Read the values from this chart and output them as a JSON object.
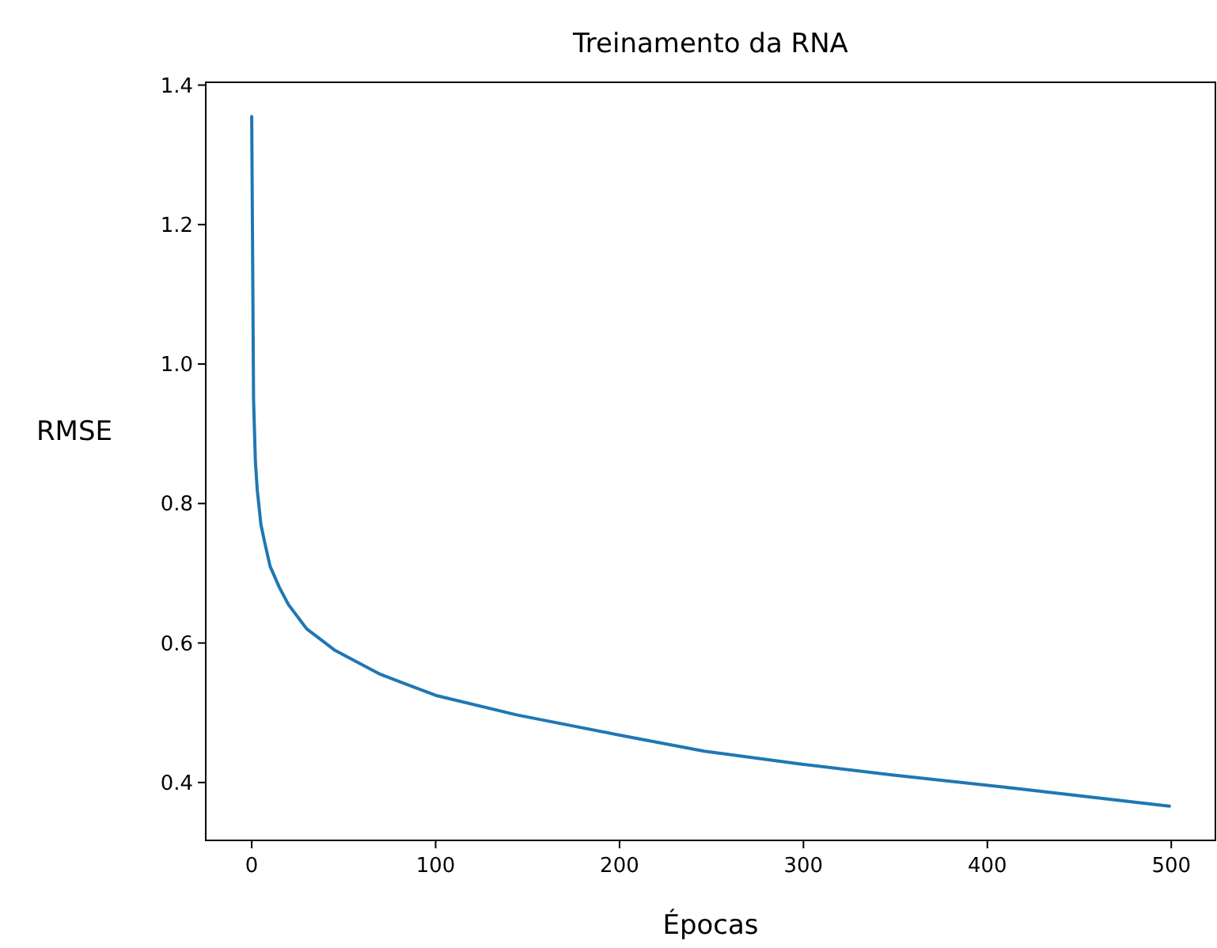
{
  "chart_data": {
    "type": "line",
    "title": "Treinamento da RNA",
    "xlabel": "Épocas",
    "ylabel": "RMSE",
    "series": [
      {
        "color": "#1f77b4",
        "x": [
          0,
          1,
          2,
          3,
          5,
          7,
          10,
          15,
          20,
          30,
          45,
          70,
          100,
          144,
          200,
          246,
          300,
          348,
          417,
          499
        ],
        "values": [
          1.355,
          0.95,
          0.86,
          0.82,
          0.77,
          0.745,
          0.71,
          0.68,
          0.655,
          0.62,
          0.59,
          0.555,
          0.525,
          0.497,
          0.468,
          0.445,
          0.426,
          0.411,
          0.391,
          0.366
        ]
      }
    ],
    "xlim": [
      -25,
      524
    ],
    "ylim": [
      0.317,
      1.404
    ],
    "xticks": [
      0,
      100,
      200,
      300,
      400,
      500
    ],
    "yticks": [
      0.4,
      0.6,
      0.8,
      {
        "value": 1,
        "label": "1.0"
      },
      1.2,
      1.4
    ],
    "grid": false,
    "marker": "none",
    "line_style": "solid"
  }
}
